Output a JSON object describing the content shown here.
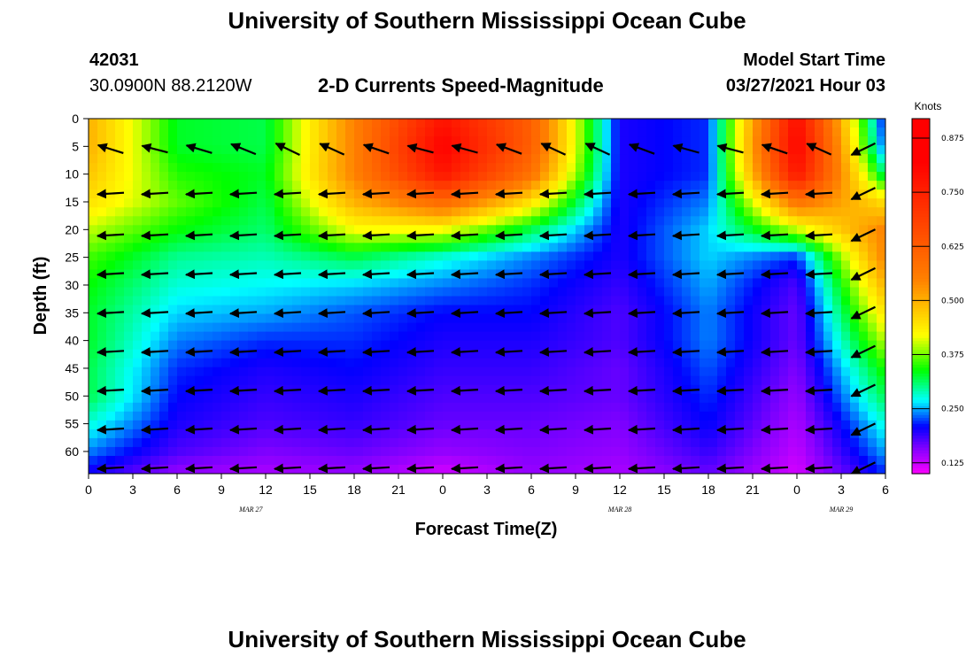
{
  "header": {
    "title": "University of Southern Mississippi Ocean Cube",
    "footer_title": "University of Southern Mississippi Ocean Cube",
    "station_id": "42031",
    "location": "30.0900N  88.2120W",
    "model_start_label": "Model Start Time",
    "model_start_value": "03/27/2021 Hour 03"
  },
  "chart_data": {
    "type": "heatmap",
    "title": "2-D Currents Speed-Magnitude",
    "xlabel": "Forecast Time(Z)",
    "ylabel": "Depth (ft)",
    "x_ticks": [
      "0",
      "3",
      "6",
      "9",
      "12",
      "15",
      "18",
      "21",
      "0",
      "3",
      "6",
      "9",
      "12",
      "15",
      "18",
      "21",
      "0",
      "3",
      "6"
    ],
    "x_range_hours": [
      0,
      54
    ],
    "date_labels": [
      {
        "text": "MAR 27",
        "hour": 11
      },
      {
        "text": "MAR 28",
        "hour": 36
      },
      {
        "text": "MAR 29",
        "hour": 51
      }
    ],
    "y_ticks": [
      "0",
      "5",
      "10",
      "15",
      "20",
      "25",
      "30",
      "35",
      "40",
      "45",
      "50",
      "55",
      "60"
    ],
    "y_range_ft": [
      0,
      64
    ],
    "y_inverted": true,
    "colorbar": {
      "title": "Knots",
      "range": [
        0.1,
        0.92
      ],
      "tick_labels": [
        "0.125",
        "0.250",
        "0.375",
        "0.500",
        "0.625",
        "0.750",
        "0.875"
      ],
      "tick_values": [
        0.125,
        0.25,
        0.375,
        0.5,
        0.625,
        0.75,
        0.875
      ]
    },
    "colors": {
      "magenta": "#ff00ff",
      "purple": "#8000ff",
      "blue": "#0000ff",
      "cyan": "#00ffff",
      "green": "#00ff00",
      "yellow": "#ffff00",
      "orange": "#ff8000",
      "red": "#ff0000"
    },
    "speed_grid": {
      "hours": [
        0,
        6,
        12,
        18,
        24,
        30,
        36,
        42,
        48,
        54
      ],
      "depths_ft": [
        0,
        5,
        10,
        15,
        20,
        25,
        30,
        35,
        40,
        45,
        50,
        55,
        60,
        64
      ],
      "knots": [
        [
          0.5,
          0.33,
          0.32,
          0.55,
          0.78,
          0.62,
          0.2,
          0.22,
          0.8,
          0.2
        ],
        [
          0.5,
          0.33,
          0.32,
          0.55,
          0.82,
          0.62,
          0.2,
          0.22,
          0.82,
          0.22
        ],
        [
          0.48,
          0.35,
          0.33,
          0.55,
          0.78,
          0.58,
          0.2,
          0.22,
          0.78,
          0.3
        ],
        [
          0.45,
          0.37,
          0.32,
          0.5,
          0.6,
          0.45,
          0.2,
          0.24,
          0.58,
          0.45
        ],
        [
          0.4,
          0.34,
          0.31,
          0.42,
          0.42,
          0.32,
          0.2,
          0.26,
          0.4,
          0.55
        ],
        [
          0.36,
          0.3,
          0.29,
          0.32,
          0.28,
          0.24,
          0.2,
          0.26,
          0.22,
          0.55
        ],
        [
          0.34,
          0.28,
          0.27,
          0.26,
          0.24,
          0.22,
          0.19,
          0.25,
          0.18,
          0.5
        ],
        [
          0.33,
          0.26,
          0.25,
          0.23,
          0.21,
          0.21,
          0.18,
          0.24,
          0.17,
          0.45
        ],
        [
          0.33,
          0.24,
          0.22,
          0.22,
          0.2,
          0.2,
          0.18,
          0.24,
          0.17,
          0.4
        ],
        [
          0.32,
          0.22,
          0.2,
          0.21,
          0.19,
          0.19,
          0.17,
          0.23,
          0.16,
          0.35
        ],
        [
          0.32,
          0.21,
          0.19,
          0.2,
          0.18,
          0.18,
          0.17,
          0.22,
          0.15,
          0.32
        ],
        [
          0.28,
          0.2,
          0.18,
          0.19,
          0.17,
          0.17,
          0.16,
          0.21,
          0.14,
          0.28
        ],
        [
          0.24,
          0.18,
          0.16,
          0.17,
          0.15,
          0.16,
          0.15,
          0.19,
          0.13,
          0.25
        ],
        [
          0.2,
          0.15,
          0.14,
          0.15,
          0.12,
          0.15,
          0.14,
          0.17,
          0.12,
          0.22
        ]
      ]
    }
  }
}
